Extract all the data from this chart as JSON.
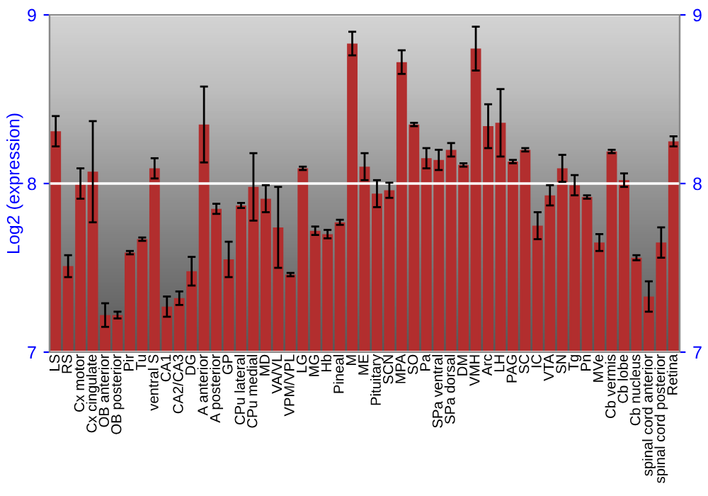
{
  "chart_data": {
    "type": "bar",
    "ylabel": "Log2 (expression)",
    "categories": [
      "LS",
      "RS",
      "Cx motor",
      "Cx cingulate",
      "OB anterior",
      "OB posterior",
      "Pir",
      "Tu",
      "ventral S",
      "CA1",
      "CA2/CA3",
      "DG",
      "A anterior",
      "A posterior",
      "GP",
      "CPu lateral",
      "CPu medial",
      "MD",
      "VA/VL",
      "VPM/VPL",
      "LG",
      "MG",
      "Hb",
      "Pineal",
      "M",
      "ME",
      "Pituitary",
      "SCN",
      "MPA",
      "SO",
      "Pa",
      "SPa ventral",
      "SPa dorsal",
      "DM",
      "VMH",
      "Arc",
      "LH",
      "PAG",
      "SC",
      "IC",
      "VTA",
      "SN",
      "Tg",
      "Pn",
      "MVe",
      "Cb vermis",
      "Cb lobe",
      "Cb nucleus",
      "spinal cord anterior",
      "spinal cord posterior",
      "Retina"
    ],
    "series": [
      {
        "color": "#b22e2e",
        "values": [
          8.31,
          7.51,
          8.0,
          8.07,
          7.22,
          7.22,
          7.59,
          7.67,
          8.09,
          7.27,
          7.32,
          7.48,
          8.35,
          7.85,
          7.55,
          7.87,
          7.98,
          7.91,
          7.74,
          7.46,
          8.09,
          7.72,
          7.7,
          7.77,
          8.83,
          8.1,
          7.94,
          7.96,
          8.72,
          8.35,
          8.15,
          8.14,
          8.2,
          8.11,
          8.8,
          8.34,
          8.36,
          8.13,
          8.2,
          7.75,
          7.93,
          8.09,
          7.99,
          7.92,
          7.65,
          8.19,
          8.02,
          7.56,
          7.33,
          7.65,
          8.25
        ],
        "errors": [
          0.09,
          0.065,
          0.09,
          0.3,
          0.07,
          0.02,
          0.01,
          0.01,
          0.06,
          0.06,
          0.04,
          0.085,
          0.225,
          0.03,
          0.105,
          0.015,
          0.2,
          0.08,
          0.24,
          0.01,
          0.01,
          0.025,
          0.025,
          0.015,
          0.07,
          0.08,
          0.08,
          0.045,
          0.07,
          0.01,
          0.06,
          0.06,
          0.04,
          0.01,
          0.13,
          0.13,
          0.2,
          0.01,
          0.01,
          0.08,
          0.06,
          0.08,
          0.06,
          0.01,
          0.05,
          0.01,
          0.04,
          0.015,
          0.09,
          0.09,
          0.03
        ]
      }
    ],
    "ylim": [
      7,
      9
    ],
    "yticks": [
      7,
      8,
      9
    ],
    "y2lim": [
      7,
      9
    ],
    "y2ticks": [
      7,
      8,
      9
    ],
    "grid": "y",
    "legend": false
  }
}
